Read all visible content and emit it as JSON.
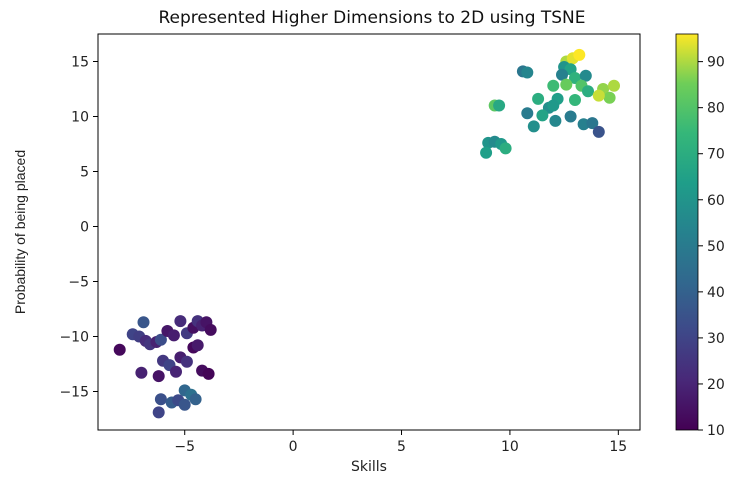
{
  "chart_data": {
    "type": "scatter",
    "title": "Represented Higher Dimensions to 2D using TSNE",
    "xlabel": "Skills",
    "ylabel": "Probability of being placed",
    "xlim": [
      -9,
      16
    ],
    "ylim": [
      -18.5,
      17.5
    ],
    "xticks": [
      -5,
      0,
      5,
      10,
      15
    ],
    "xtick_labels": [
      "−5",
      "0",
      "5",
      "10",
      "15"
    ],
    "yticks": [
      -15,
      -10,
      -5,
      0,
      5,
      10,
      15
    ],
    "ytick_labels": [
      "−15",
      "−10",
      "−5",
      "0",
      "5",
      "10",
      "15"
    ],
    "grid": false,
    "colormap": "viridis",
    "colorbar": {
      "min": 10,
      "max": 96,
      "ticks": [
        10,
        20,
        30,
        40,
        50,
        60,
        70,
        80,
        90
      ],
      "tick_labels": [
        "10",
        "20",
        "30",
        "40",
        "50",
        "60",
        "70",
        "80",
        "90"
      ]
    },
    "points": [
      {
        "x": -8.0,
        "y": -11.2,
        "c": 12
      },
      {
        "x": -7.4,
        "y": -9.8,
        "c": 30
      },
      {
        "x": -7.1,
        "y": -10.0,
        "c": 28
      },
      {
        "x": -6.9,
        "y": -8.7,
        "c": 36
      },
      {
        "x": -6.8,
        "y": -10.4,
        "c": 22
      },
      {
        "x": -6.6,
        "y": -10.7,
        "c": 25
      },
      {
        "x": -6.3,
        "y": -10.5,
        "c": 19
      },
      {
        "x": -6.1,
        "y": -10.3,
        "c": 33
      },
      {
        "x": -5.8,
        "y": -9.5,
        "c": 16
      },
      {
        "x": -5.5,
        "y": -9.9,
        "c": 18
      },
      {
        "x": -5.2,
        "y": -8.6,
        "c": 22
      },
      {
        "x": -4.9,
        "y": -9.7,
        "c": 27
      },
      {
        "x": -4.6,
        "y": -9.2,
        "c": 14
      },
      {
        "x": -4.4,
        "y": -8.6,
        "c": 24
      },
      {
        "x": -4.2,
        "y": -9.0,
        "c": 19
      },
      {
        "x": -4.0,
        "y": -8.7,
        "c": 15
      },
      {
        "x": -3.8,
        "y": -9.4,
        "c": 13
      },
      {
        "x": -4.6,
        "y": -11.0,
        "c": 12
      },
      {
        "x": -4.4,
        "y": -10.8,
        "c": 17
      },
      {
        "x": -6.0,
        "y": -12.2,
        "c": 26
      },
      {
        "x": -5.7,
        "y": -12.6,
        "c": 30
      },
      {
        "x": -5.4,
        "y": -13.2,
        "c": 20
      },
      {
        "x": -5.2,
        "y": -11.9,
        "c": 18
      },
      {
        "x": -4.9,
        "y": -12.3,
        "c": 24
      },
      {
        "x": -6.2,
        "y": -13.6,
        "c": 15
      },
      {
        "x": -7.0,
        "y": -13.3,
        "c": 19
      },
      {
        "x": -4.2,
        "y": -13.1,
        "c": 13
      },
      {
        "x": -3.9,
        "y": -13.4,
        "c": 11
      },
      {
        "x": -5.0,
        "y": -14.9,
        "c": 42
      },
      {
        "x": -4.7,
        "y": -15.3,
        "c": 46
      },
      {
        "x": -4.5,
        "y": -15.7,
        "c": 40
      },
      {
        "x": -6.1,
        "y": -15.7,
        "c": 34
      },
      {
        "x": -5.6,
        "y": -16.0,
        "c": 38
      },
      {
        "x": -5.3,
        "y": -15.8,
        "c": 32
      },
      {
        "x": -6.2,
        "y": -16.9,
        "c": 30
      },
      {
        "x": -5.0,
        "y": -16.2,
        "c": 36
      },
      {
        "x": 10.6,
        "y": 14.1,
        "c": 48
      },
      {
        "x": 10.8,
        "y": 14.0,
        "c": 54
      },
      {
        "x": 12.6,
        "y": 15.0,
        "c": 90
      },
      {
        "x": 12.9,
        "y": 15.3,
        "c": 94
      },
      {
        "x": 13.2,
        "y": 15.6,
        "c": 96
      },
      {
        "x": 12.5,
        "y": 14.5,
        "c": 60
      },
      {
        "x": 12.8,
        "y": 14.3,
        "c": 66
      },
      {
        "x": 13.0,
        "y": 13.5,
        "c": 72
      },
      {
        "x": 13.5,
        "y": 13.7,
        "c": 56
      },
      {
        "x": 12.4,
        "y": 13.8,
        "c": 52
      },
      {
        "x": 12.0,
        "y": 12.8,
        "c": 76
      },
      {
        "x": 12.6,
        "y": 12.9,
        "c": 84
      },
      {
        "x": 13.3,
        "y": 12.8,
        "c": 80
      },
      {
        "x": 13.6,
        "y": 12.3,
        "c": 70
      },
      {
        "x": 14.3,
        "y": 12.5,
        "c": 88
      },
      {
        "x": 14.8,
        "y": 12.8,
        "c": 90
      },
      {
        "x": 14.6,
        "y": 11.7,
        "c": 86
      },
      {
        "x": 14.1,
        "y": 11.9,
        "c": 92
      },
      {
        "x": 13.0,
        "y": 11.5,
        "c": 74
      },
      {
        "x": 12.2,
        "y": 11.6,
        "c": 64
      },
      {
        "x": 11.8,
        "y": 10.8,
        "c": 58
      },
      {
        "x": 12.0,
        "y": 11.0,
        "c": 62
      },
      {
        "x": 11.5,
        "y": 10.1,
        "c": 66
      },
      {
        "x": 12.1,
        "y": 9.6,
        "c": 55
      },
      {
        "x": 12.8,
        "y": 10.0,
        "c": 50
      },
      {
        "x": 13.4,
        "y": 9.3,
        "c": 52
      },
      {
        "x": 13.8,
        "y": 9.4,
        "c": 48
      },
      {
        "x": 10.8,
        "y": 10.3,
        "c": 50
      },
      {
        "x": 11.1,
        "y": 9.1,
        "c": 58
      },
      {
        "x": 11.3,
        "y": 11.6,
        "c": 70
      },
      {
        "x": 14.1,
        "y": 8.6,
        "c": 35
      },
      {
        "x": 9.3,
        "y": 11.0,
        "c": 82
      },
      {
        "x": 9.5,
        "y": 11.0,
        "c": 68
      },
      {
        "x": 9.0,
        "y": 7.6,
        "c": 60
      },
      {
        "x": 9.3,
        "y": 7.7,
        "c": 56
      },
      {
        "x": 9.6,
        "y": 7.5,
        "c": 62
      },
      {
        "x": 9.8,
        "y": 7.1,
        "c": 70
      },
      {
        "x": 8.9,
        "y": 6.7,
        "c": 64
      }
    ]
  }
}
